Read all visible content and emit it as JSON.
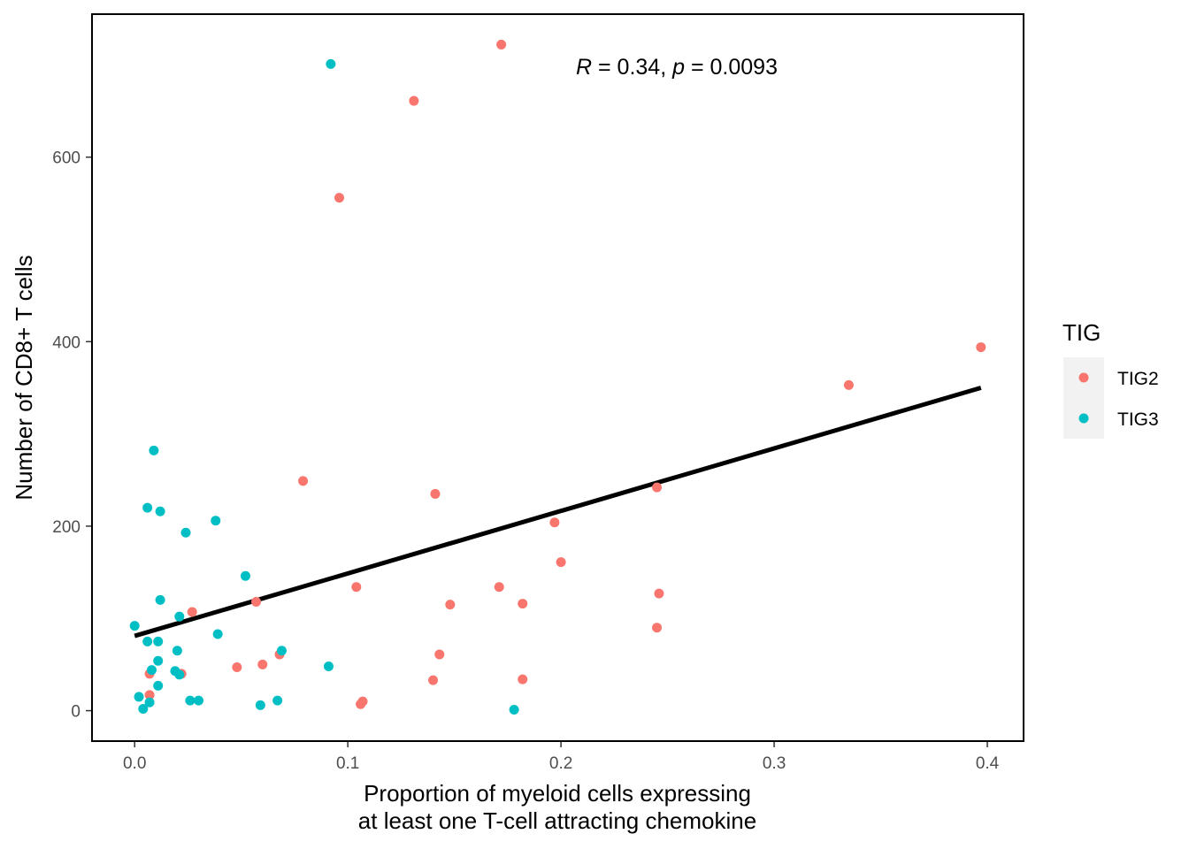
{
  "chart_data": {
    "type": "scatter",
    "xlabel_lines": [
      "Proportion of myeloid cells expressing",
      "at least one T-cell attracting chemokine"
    ],
    "ylabel": "Number of CD8+ T cells",
    "xlim": [
      -0.02,
      0.417
    ],
    "ylim": [
      -33,
      755
    ],
    "x_ticks": [
      0.0,
      0.1,
      0.2,
      0.3,
      0.4
    ],
    "x_tick_labels": [
      "0.0",
      "0.1",
      "0.2",
      "0.3",
      "0.4"
    ],
    "y_ticks": [
      0,
      200,
      400,
      600
    ],
    "y_tick_labels": [
      "0",
      "200",
      "400",
      "600"
    ],
    "grid": false,
    "legend": {
      "title": "TIG",
      "position": "right",
      "entries": [
        {
          "label": "TIG2",
          "color": "#F8766D"
        },
        {
          "label": "TIG3",
          "color": "#00BFC4"
        }
      ]
    },
    "annotation": {
      "R_symbol": "R",
      "R_value": " = 0.34, ",
      "p_symbol": "p",
      "p_value": " = 0.0093"
    },
    "regression_line": {
      "x": [
        0.0,
        0.397
      ],
      "y": [
        81,
        350
      ],
      "color": "#000000"
    },
    "series": [
      {
        "name": "TIG2",
        "color": "#F8766D",
        "points": [
          [
            0.172,
            722
          ],
          [
            0.131,
            661
          ],
          [
            0.096,
            556
          ],
          [
            0.397,
            394
          ],
          [
            0.335,
            353
          ],
          [
            0.079,
            249
          ],
          [
            0.141,
            235
          ],
          [
            0.245,
            242
          ],
          [
            0.197,
            204
          ],
          [
            0.2,
            161
          ],
          [
            0.104,
            134
          ],
          [
            0.171,
            134
          ],
          [
            0.246,
            127
          ],
          [
            0.057,
            118
          ],
          [
            0.148,
            115
          ],
          [
            0.182,
            116
          ],
          [
            0.027,
            107
          ],
          [
            0.245,
            90
          ],
          [
            0.068,
            61
          ],
          [
            0.143,
            61
          ],
          [
            0.06,
            50
          ],
          [
            0.048,
            47
          ],
          [
            0.022,
            40
          ],
          [
            0.007,
            40
          ],
          [
            0.14,
            33
          ],
          [
            0.182,
            34
          ],
          [
            0.007,
            17
          ],
          [
            0.107,
            10
          ],
          [
            0.106,
            7
          ]
        ]
      },
      {
        "name": "TIG3",
        "color": "#00BFC4",
        "points": [
          [
            0.092,
            701
          ],
          [
            0.009,
            282
          ],
          [
            0.006,
            220
          ],
          [
            0.012,
            216
          ],
          [
            0.038,
            206
          ],
          [
            0.024,
            193
          ],
          [
            0.052,
            146
          ],
          [
            0.012,
            120
          ],
          [
            0.021,
            102
          ],
          [
            0.0,
            92
          ],
          [
            0.039,
            83
          ],
          [
            0.006,
            75
          ],
          [
            0.011,
            75
          ],
          [
            0.069,
            65
          ],
          [
            0.02,
            65
          ],
          [
            0.011,
            54
          ],
          [
            0.091,
            48
          ],
          [
            0.008,
            44
          ],
          [
            0.019,
            43
          ],
          [
            0.021,
            39
          ],
          [
            0.011,
            27
          ],
          [
            0.002,
            15
          ],
          [
            0.026,
            11
          ],
          [
            0.03,
            11
          ],
          [
            0.067,
            11
          ],
          [
            0.007,
            9
          ],
          [
            0.059,
            6
          ],
          [
            0.004,
            2
          ],
          [
            0.178,
            1
          ]
        ]
      }
    ]
  }
}
